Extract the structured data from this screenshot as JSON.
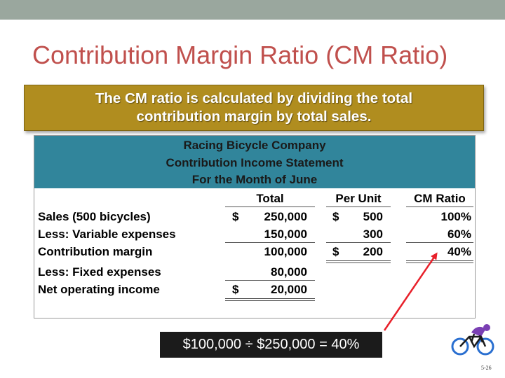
{
  "slide": {
    "title": "Contribution Margin Ratio (CM Ratio)",
    "banner_line1": "The CM ratio is calculated by dividing the total",
    "banner_line2": "contribution margin by total sales.",
    "formula": "$100,000 ÷ $250,000 = 40%",
    "page_number": "5-26"
  },
  "statement": {
    "company": "Racing Bicycle Company",
    "name": "Contribution Income Statement",
    "period": "For the Month of June",
    "columns": {
      "total": "Total",
      "per_unit": "Per Unit",
      "cm_ratio": "CM Ratio"
    },
    "currency_symbol": "$",
    "rows": [
      {
        "label": "Sales (500 bicycles)",
        "total": "250,000",
        "per_unit": "500",
        "ratio": "100%"
      },
      {
        "label": "Less: Variable expenses",
        "total": "150,000",
        "per_unit": "300",
        "ratio": "60%"
      },
      {
        "label": "Contribution margin",
        "total": "100,000",
        "per_unit": "200",
        "ratio": "40%"
      },
      {
        "label": "Less: Fixed expenses",
        "total": "80,000"
      },
      {
        "label": "Net operating income",
        "total": "20,000"
      }
    ]
  },
  "colors": {
    "title": "#c0504d",
    "banner": "#b08d1f",
    "statement_header": "#31859b",
    "arrow": "#e8202a"
  },
  "icons": {
    "corner_image": "cyclist-icon"
  }
}
